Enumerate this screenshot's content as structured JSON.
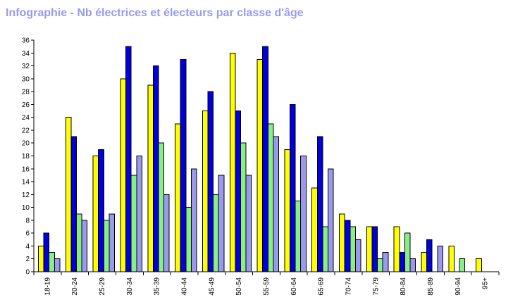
{
  "chart_data": {
    "type": "bar",
    "title": "Infographie - Nb électrices et électeurs par classe d'âge",
    "xlabel": "",
    "ylabel": "",
    "ylim": [
      0,
      36
    ],
    "yticks": [
      0,
      2,
      4,
      6,
      8,
      10,
      12,
      14,
      16,
      18,
      20,
      22,
      24,
      26,
      28,
      30,
      32,
      34,
      36
    ],
    "grid": false,
    "legend": "none",
    "categories": [
      "18-19",
      "20-24",
      "25-29",
      "30-34",
      "35-39",
      "40-44",
      "45-49",
      "50-54",
      "55-59",
      "60-64",
      "65-69",
      "70-74",
      "75-79",
      "80-84",
      "85-89",
      "90-94",
      "95+"
    ],
    "series": [
      {
        "color": "#ffff00",
        "values": [
          4,
          24,
          18,
          30,
          29,
          23,
          25,
          34,
          33,
          19,
          13,
          9,
          7,
          7,
          3,
          4,
          2
        ]
      },
      {
        "color": "#0000dd",
        "values": [
          6,
          21,
          19,
          35,
          32,
          33,
          28,
          25,
          35,
          26,
          21,
          8,
          7,
          3,
          5,
          0,
          0
        ]
      },
      {
        "color": "#88ee88",
        "values": [
          3,
          9,
          8,
          15,
          20,
          10,
          12,
          20,
          23,
          11,
          7,
          7,
          2,
          6,
          0,
          2,
          0
        ]
      },
      {
        "color": "#9999ee",
        "values": [
          2,
          8,
          9,
          18,
          12,
          16,
          15,
          15,
          21,
          18,
          16,
          5,
          3,
          2,
          4,
          0,
          0
        ]
      }
    ]
  }
}
